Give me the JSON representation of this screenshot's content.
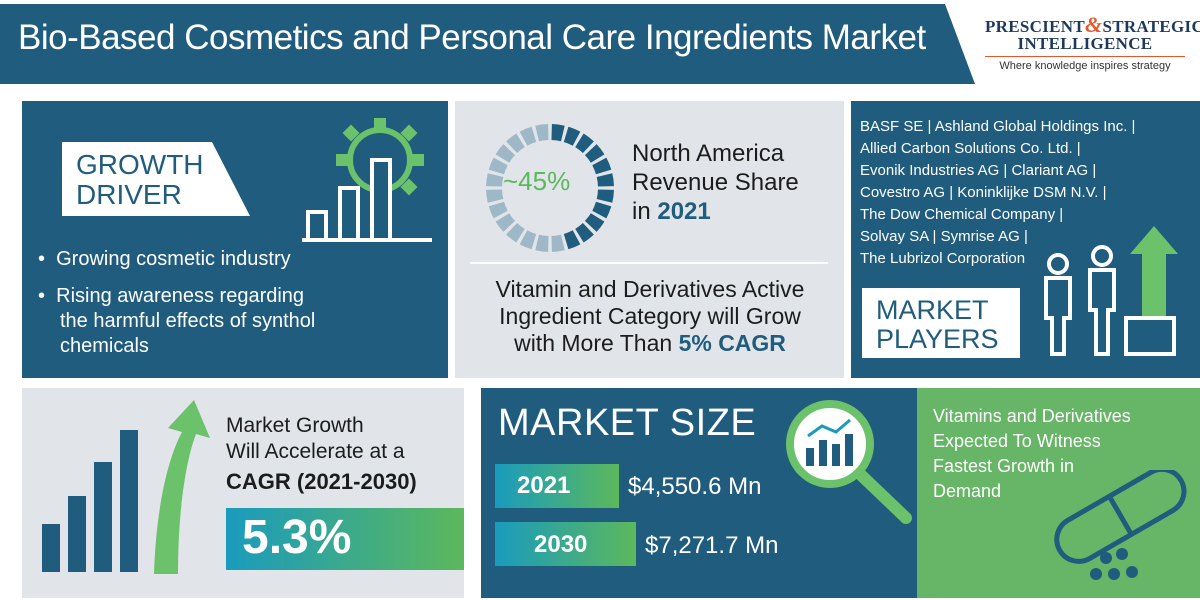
{
  "header": {
    "title": "Bio-Based Cosmetics and Personal Care Ingredients Market",
    "logo_line1_a": "PRESCIENT",
    "logo_amp": "&",
    "logo_line1_b": "STRATEGIC",
    "logo_line2": "INTELLIGENCE",
    "logo_tagline": "Where knowledge inspires strategy"
  },
  "growth_driver": {
    "title_line1": "GROWTH",
    "title_line2": "DRIVER",
    "bullets": [
      "Growing cosmetic industry",
      "Rising awareness regarding",
      "the harmful effects of synthol",
      "chemicals"
    ]
  },
  "north_america": {
    "percent": "~45%",
    "line1": "North America",
    "line2": "Revenue Share",
    "line3_prefix": "in",
    "year": "2021"
  },
  "vitamin_growth": {
    "line1": "Vitamin and Derivatives Active",
    "line2": "Ingredient Category will Grow",
    "line3_prefix": "with More Than",
    "highlight": "5% CAGR"
  },
  "market_players": {
    "lines": [
      "BASF SE | Ashland Global Holdings Inc. |",
      "Allied Carbon Solutions Co. Ltd. |",
      "Evonik Industries AG | Clariant AG |",
      "Covestro AG | Koninklijke DSM N.V. |",
      "The Dow Chemical Company |",
      "Solvay SA | Symrise AG |",
      "The Lubrizol Corporation"
    ],
    "title_line1": "MARKET",
    "title_line2": "PLAYERS"
  },
  "cagr": {
    "line1": "Market Growth",
    "line2": "Will Accelerate at a",
    "bold": "CAGR (2021-2030)",
    "value": "5.3%"
  },
  "market_size": {
    "title": "MARKET SIZE",
    "rows": [
      {
        "year": "2021",
        "amount": "$4,550.6 Mn"
      },
      {
        "year": "2030",
        "amount": "$7,271.7 Mn"
      }
    ]
  },
  "vitamins_demand": {
    "line1": "Vitamins and Derivatives",
    "line2": "Expected To Witness",
    "line3": "Fastest Growth in",
    "line4": "Demand"
  },
  "colors": {
    "navy": "#1f5c7d",
    "green": "#67b566",
    "grey_panel": "#e1e5e9",
    "teal": "#1a9bbd"
  },
  "icons": [
    "gear-bar-chart-icon",
    "donut-ring-icon",
    "people-podium-icon",
    "rising-bars-arrow-icon",
    "magnifier-chart-icon",
    "capsule-pill-icon"
  ]
}
